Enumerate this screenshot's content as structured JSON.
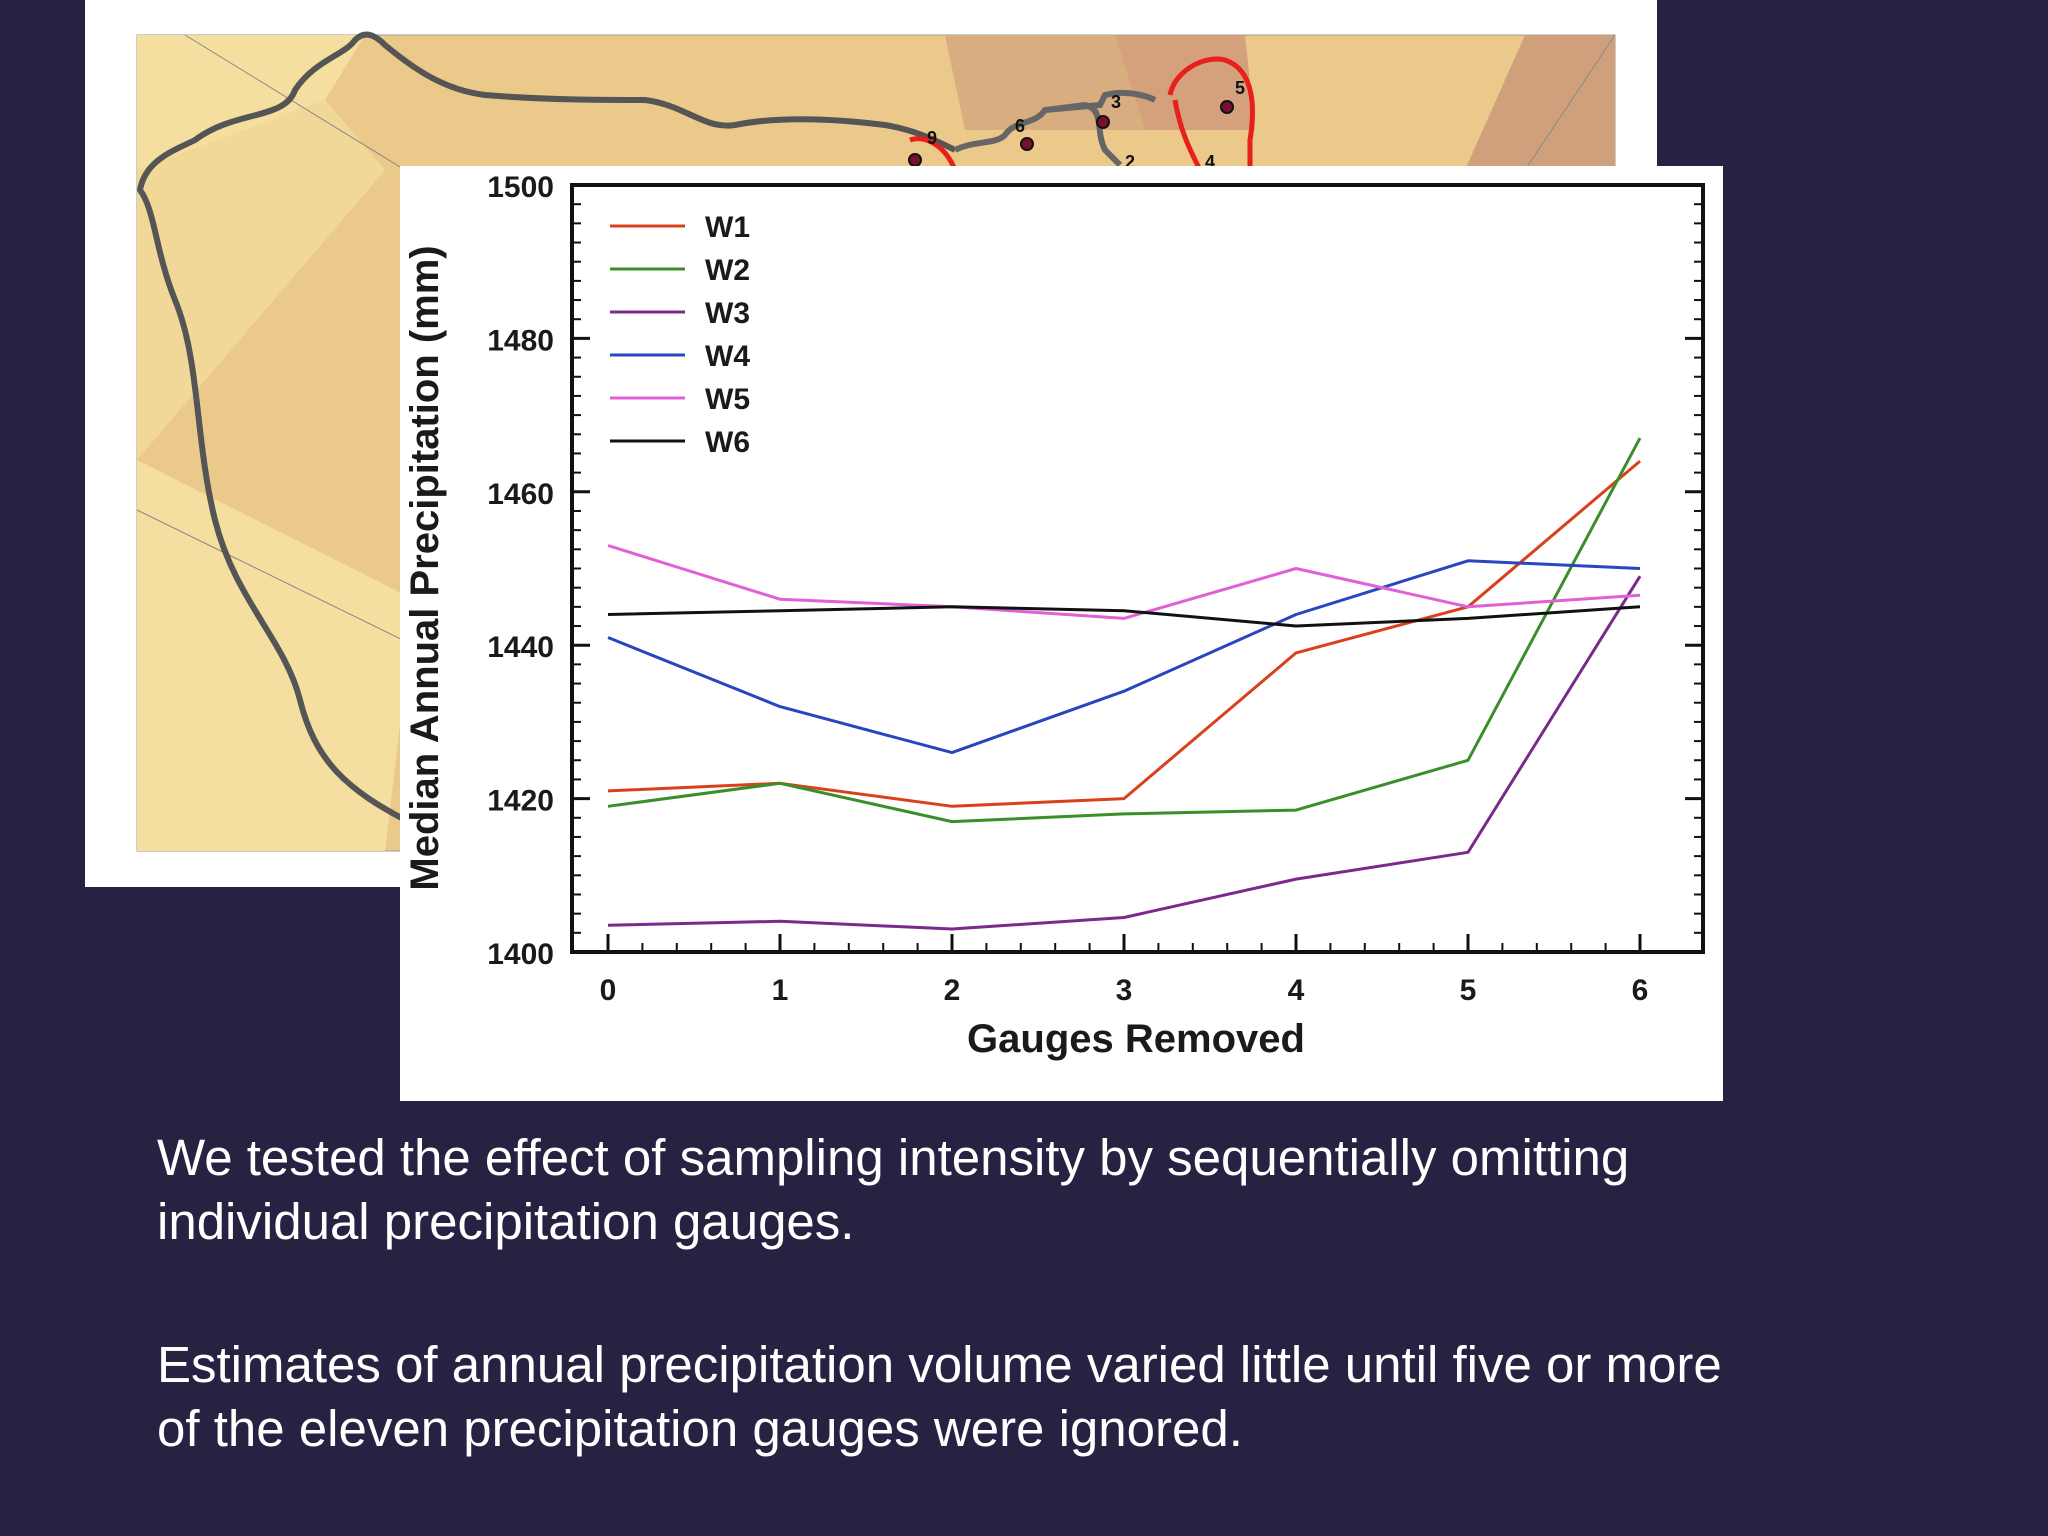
{
  "slide": {
    "paragraph1": [
      "We tested the effect of sampling intensity by sequentially omitting",
      "individual precipitation gauges."
    ],
    "paragraph2": [
      "Estimates of annual precipitation volume varied little until five or more",
      "of the eleven precipitation gauges were ignored."
    ]
  },
  "map": {
    "gauge_labels": [
      "9",
      "6",
      "3",
      "5",
      "2",
      "4"
    ],
    "colors": {
      "land_light": "#f5dfa0",
      "land_mid": "#ebc98a",
      "land_dark": "#d4a17c",
      "boundary": "#555555",
      "watershed": "#e8201a"
    }
  },
  "chart_data": {
    "type": "line",
    "xlabel": "Gauges Removed",
    "ylabel": "Median Annual Precipitation (mm)",
    "x": [
      0,
      1,
      2,
      3,
      4,
      5,
      6
    ],
    "xlim": [
      0,
      6
    ],
    "ylim": [
      1400,
      1500
    ],
    "y_ticks": [
      1400,
      1420,
      1440,
      1460,
      1480,
      1500
    ],
    "legend_position": "top-left",
    "grid": false,
    "series": [
      {
        "name": "W1",
        "color": "#d9401c",
        "values": [
          1421,
          1422,
          1419,
          1420,
          1439,
          1445,
          1464
        ]
      },
      {
        "name": "W2",
        "color": "#3a8f2a",
        "values": [
          1419,
          1422,
          1417,
          1418,
          1418.5,
          1425,
          1467
        ]
      },
      {
        "name": "W3",
        "color": "#7a2a8a",
        "values": [
          1403.5,
          1404,
          1403,
          1404.5,
          1409.5,
          1413,
          1449
        ]
      },
      {
        "name": "W4",
        "color": "#2a45c0",
        "values": [
          1441,
          1432,
          1426,
          1434,
          1444,
          1451,
          1450
        ]
      },
      {
        "name": "W5",
        "color": "#e060d8",
        "values": [
          1453,
          1446,
          1445,
          1443.5,
          1450,
          1445,
          1446.5
        ]
      },
      {
        "name": "W6",
        "color": "#111111",
        "values": [
          1444,
          1444.5,
          1445,
          1444.5,
          1442.5,
          1443.5,
          1445
        ]
      }
    ]
  }
}
